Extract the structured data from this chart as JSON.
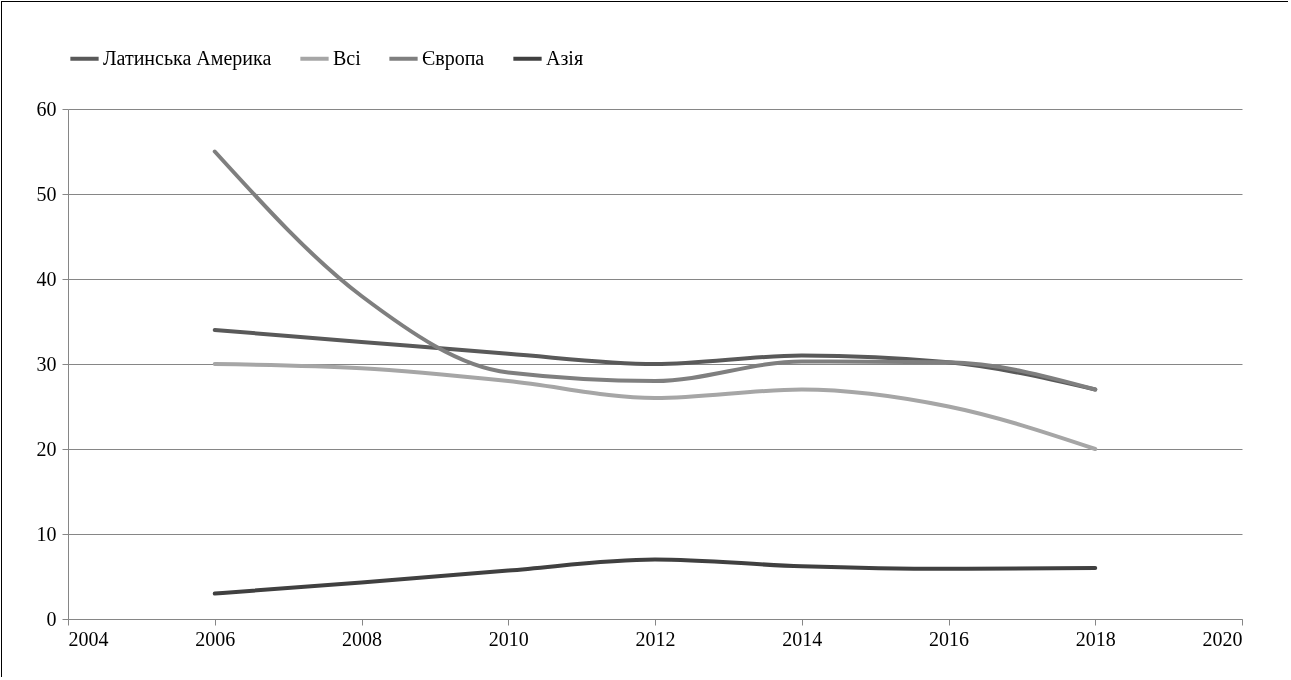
{
  "chart_data": {
    "type": "line",
    "xlim": [
      2004,
      2020
    ],
    "xticks": [
      2004,
      2006,
      2008,
      2010,
      2012,
      2014,
      2016,
      2018,
      2020
    ],
    "ylim": [
      0,
      60
    ],
    "yticks": [
      0,
      10,
      20,
      30,
      40,
      50,
      60
    ],
    "grid": "y",
    "legend": "top",
    "marker": "none",
    "line_style": "solid",
    "x": [
      2006,
      2008,
      2010,
      2012,
      2014,
      2016,
      2018
    ],
    "series": [
      {
        "name": "Латинська Америка",
        "color": "#595959",
        "values": [
          34,
          32.6,
          31.2,
          30,
          31,
          30.2,
          27
        ]
      },
      {
        "name": "Всі",
        "color": "#a6a6a6",
        "values": [
          30,
          29.5,
          28,
          26,
          27,
          25,
          20
        ]
      },
      {
        "name": "Європа",
        "color": "#7f7f7f",
        "values": [
          55,
          38,
          29,
          28,
          30.3,
          30.2,
          27
        ]
      },
      {
        "name": "Азія",
        "color": "#404040",
        "values": [
          3,
          4.3,
          5.7,
          7,
          6.2,
          5.9,
          6
        ]
      }
    ]
  }
}
